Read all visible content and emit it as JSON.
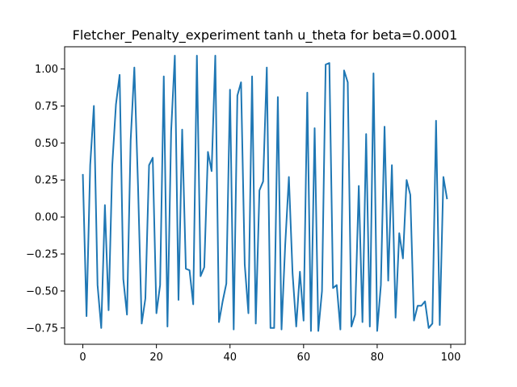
{
  "chart_data": {
    "type": "line",
    "title": "Fletcher_Penalty_experiment tanh u_theta for beta=0.0001",
    "xlabel": "",
    "ylabel": "",
    "xlim": [
      -4.95,
      103.95
    ],
    "ylim": [
      -0.86,
      1.15
    ],
    "xticks": [
      0,
      20,
      40,
      60,
      80,
      100
    ],
    "xtick_labels": [
      "0",
      "20",
      "40",
      "60",
      "80",
      "100"
    ],
    "yticks": [
      -0.75,
      -0.5,
      -0.25,
      0.0,
      0.25,
      0.5,
      0.75,
      1.0
    ],
    "ytick_labels": [
      "−0.75",
      "−0.50",
      "−0.25",
      "0.00",
      "0.25",
      "0.50",
      "0.75",
      "1.00"
    ],
    "grid": false,
    "legend": false,
    "series": [
      {
        "color": "#1f77b4",
        "x": [
          0,
          1,
          2,
          3,
          4,
          5,
          6,
          7,
          8,
          9,
          10,
          11,
          12,
          13,
          14,
          15,
          16,
          17,
          18,
          19,
          20,
          21,
          22,
          23,
          24,
          25,
          26,
          27,
          28,
          29,
          30,
          31,
          32,
          33,
          34,
          35,
          36,
          37,
          38,
          39,
          40,
          41,
          42,
          43,
          44,
          45,
          46,
          47,
          48,
          49,
          50,
          51,
          52,
          53,
          54,
          55,
          56,
          57,
          58,
          59,
          60,
          61,
          62,
          63,
          64,
          65,
          66,
          67,
          68,
          69,
          70,
          71,
          72,
          73,
          74,
          75,
          76,
          77,
          78,
          79,
          80,
          81,
          82,
          83,
          84,
          85,
          86,
          87,
          88,
          89,
          90,
          91,
          92,
          93,
          94,
          95,
          96,
          97,
          98,
          99
        ],
        "values": [
          0.29,
          -0.67,
          0.35,
          0.75,
          -0.46,
          -0.75,
          0.08,
          -0.63,
          0.35,
          0.76,
          0.96,
          -0.42,
          -0.66,
          0.52,
          1.01,
          0.21,
          -0.72,
          -0.55,
          0.35,
          0.4,
          -0.65,
          -0.46,
          0.95,
          -0.74,
          0.58,
          1.09,
          -0.56,
          0.59,
          -0.35,
          -0.36,
          -0.59,
          1.09,
          -0.4,
          -0.34,
          0.44,
          0.31,
          1.09,
          -0.71,
          -0.57,
          -0.45,
          0.86,
          -0.76,
          0.82,
          0.91,
          -0.32,
          -0.65,
          0.95,
          -0.72,
          0.18,
          0.24,
          1.01,
          -0.75,
          -0.75,
          0.81,
          -0.76,
          -0.19,
          0.27,
          -0.38,
          -0.74,
          -0.37,
          -0.7,
          0.84,
          -0.77,
          0.6,
          -0.77,
          -0.5,
          1.03,
          1.04,
          -0.48,
          -0.46,
          -0.76,
          0.99,
          0.91,
          -0.74,
          -0.66,
          0.21,
          -0.71,
          0.56,
          -0.74,
          0.97,
          -0.77,
          -0.46,
          0.61,
          -0.43,
          0.35,
          -0.68,
          -0.11,
          -0.28,
          0.25,
          0.15,
          -0.7,
          -0.6,
          -0.6,
          -0.57,
          -0.75,
          -0.72,
          0.65,
          -0.73,
          0.27,
          0.12
        ]
      }
    ]
  }
}
